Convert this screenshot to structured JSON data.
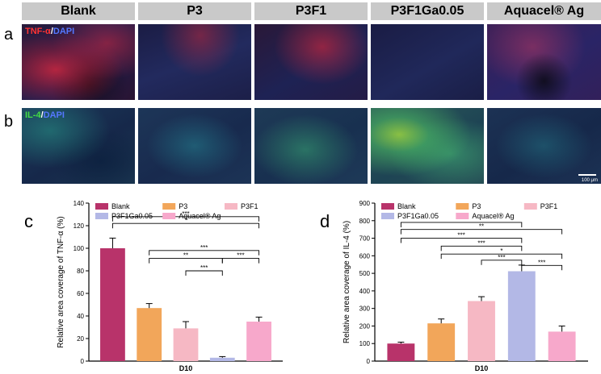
{
  "columns": [
    "Blank",
    "P3",
    "P3F1",
    "P3F1Ga0.05",
    "Aquacel® Ag"
  ],
  "row_a": {
    "letter": "a",
    "stain_marker": "TNF-α",
    "stain_sep": "/",
    "stain_dapi": "DAPI",
    "marker_color": "#ff3333"
  },
  "row_b": {
    "letter": "b",
    "stain_marker": "IL-4",
    "stain_sep": "/",
    "stain_dapi": "DAPI",
    "marker_color": "#44dd44"
  },
  "scale_label": "100 μm",
  "chart_c_letter": "c",
  "chart_d_letter": "d",
  "chart_data": [
    {
      "type": "bar",
      "title": "",
      "xlabel": "D10",
      "ylabel": "Relative area coverage of TNF-α (%)",
      "ylim": [
        0,
        140
      ],
      "yticks": [
        0,
        20,
        40,
        60,
        80,
        100,
        120,
        140
      ],
      "categories": [
        "Blank",
        "P3",
        "P3F1",
        "P3F1Ga0.05",
        "Aquacel® Ag"
      ],
      "values": [
        100,
        47,
        29,
        3,
        35
      ],
      "errors": [
        9,
        4,
        6,
        1,
        4
      ],
      "colors": [
        "#b8336a",
        "#f2a65a",
        "#f6b8c4",
        "#b3b8e6",
        "#f7a8cb"
      ],
      "significance": [
        {
          "from": 0,
          "to": 4,
          "label": "***",
          "y": 128
        },
        {
          "from": 0,
          "to": 4,
          "label": "*",
          "y": 122
        },
        {
          "from": 1,
          "to": 4,
          "label": "***",
          "y": 98
        },
        {
          "from": 1,
          "to": 3,
          "label": "**",
          "y": 91
        },
        {
          "from": 2,
          "to": 3,
          "label": "***",
          "y": 80
        },
        {
          "from": 3,
          "to": 4,
          "label": "***",
          "y": 91
        }
      ]
    },
    {
      "type": "bar",
      "title": "",
      "xlabel": "D10",
      "ylabel": "Relative area coverage of IL-4 (%)",
      "ylim": [
        0,
        900
      ],
      "yticks": [
        0,
        100,
        200,
        300,
        400,
        500,
        600,
        700,
        800,
        900
      ],
      "categories": [
        "Blank",
        "P3",
        "P3F1",
        "P3F1Ga0.05",
        "Aquacel® Ag"
      ],
      "values": [
        100,
        215,
        342,
        512,
        168
      ],
      "errors": [
        8,
        25,
        25,
        35,
        32
      ],
      "colors": [
        "#b8336a",
        "#f2a65a",
        "#f6b8c4",
        "#b3b8e6",
        "#f7a8cb"
      ],
      "significance": [
        {
          "from": 0,
          "to": 3,
          "label": "***",
          "y": 790
        },
        {
          "from": 0,
          "to": 4,
          "label": "**",
          "y": 750
        },
        {
          "from": 0,
          "to": 3,
          "label": "***",
          "y": 700
        },
        {
          "from": 1,
          "to": 3,
          "label": "***",
          "y": 655
        },
        {
          "from": 1,
          "to": 4,
          "label": "*",
          "y": 610
        },
        {
          "from": 2,
          "to": 3,
          "label": "***",
          "y": 575
        },
        {
          "from": 3,
          "to": 4,
          "label": "***",
          "y": 545
        }
      ]
    }
  ]
}
